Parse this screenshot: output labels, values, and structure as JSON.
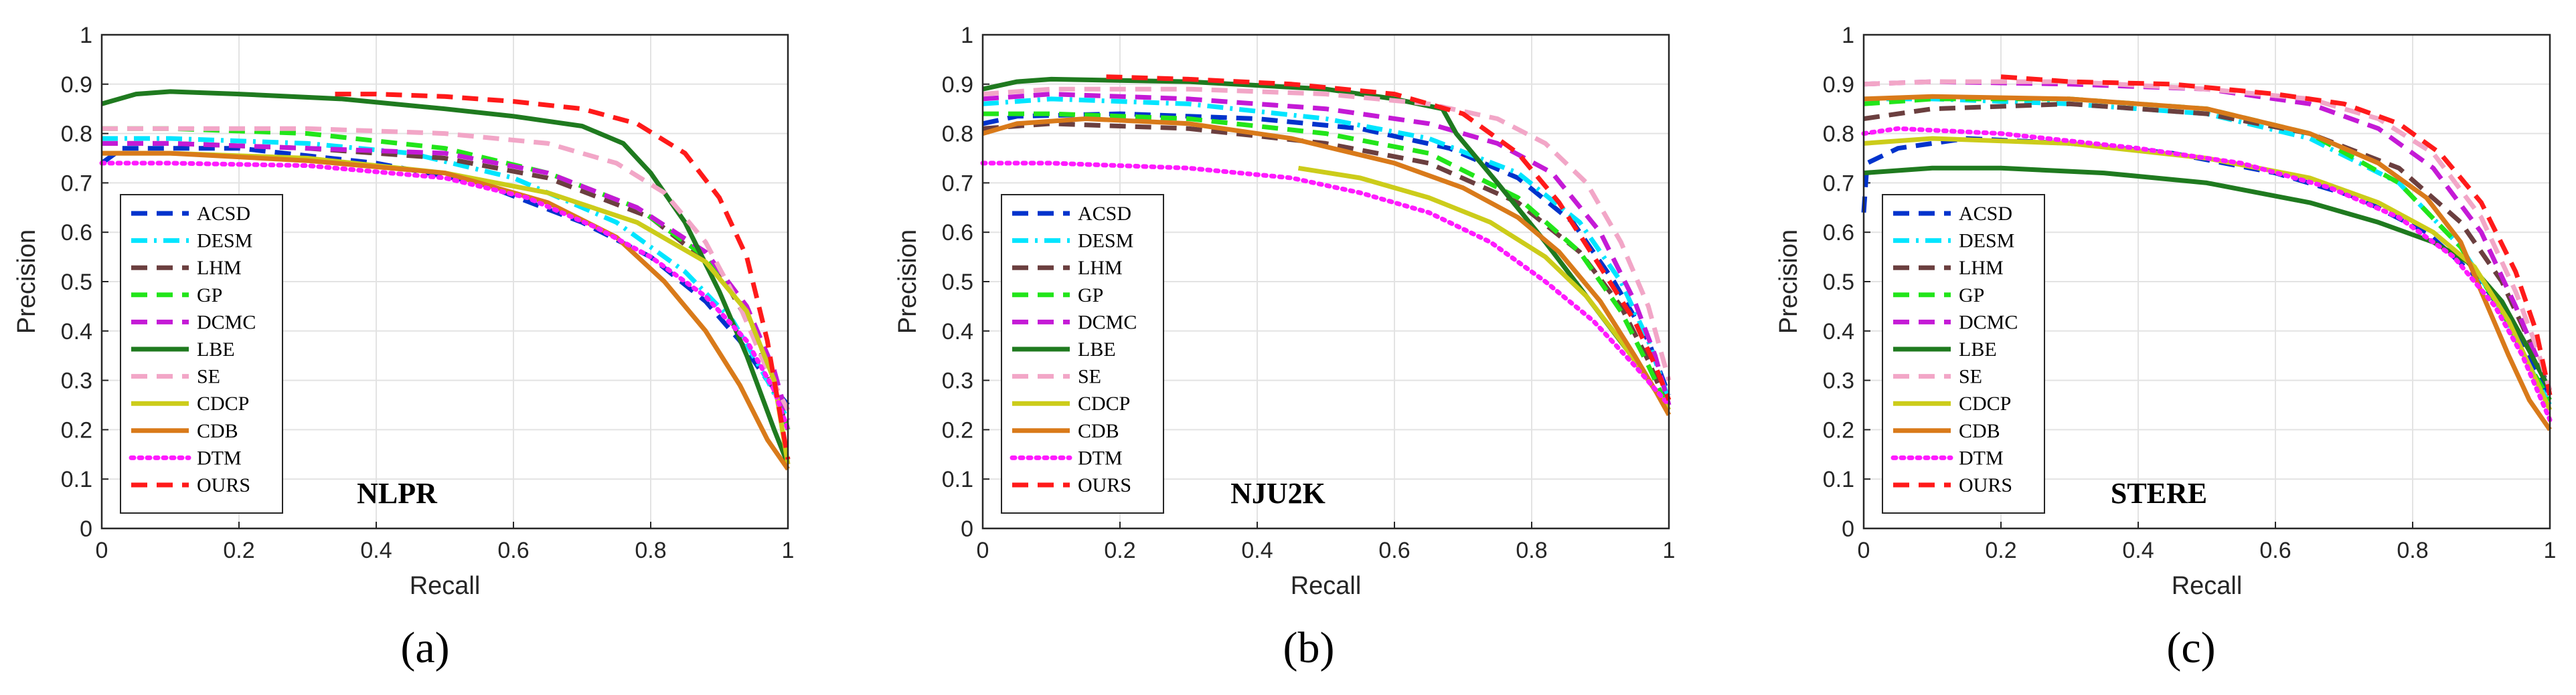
{
  "series_styles": [
    {
      "name": "ACSD",
      "color": "#0033cc",
      "style": "dash"
    },
    {
      "name": "DESM",
      "color": "#00e5ff",
      "style": "dashdot"
    },
    {
      "name": "LHM",
      "color": "#6b3f3f",
      "style": "dash"
    },
    {
      "name": "GP",
      "color": "#22e51a",
      "style": "dash"
    },
    {
      "name": "DCMC",
      "color": "#c41ad6",
      "style": "dash"
    },
    {
      "name": "LBE",
      "color": "#1f7a1f",
      "style": "solid"
    },
    {
      "name": "SE",
      "color": "#f2a6c7",
      "style": "dash"
    },
    {
      "name": "CDCP",
      "color": "#cccc1a",
      "style": "solid"
    },
    {
      "name": "CDB",
      "color": "#d97a1a",
      "style": "solid"
    },
    {
      "name": "DTM",
      "color": "#ff1aff",
      "style": "dot"
    },
    {
      "name": "OURS",
      "color": "#ff1a1a",
      "style": "dash"
    }
  ],
  "chart_data": [
    {
      "type": "line",
      "panel_label": "(a)",
      "dataset_label": "NLPR",
      "xlabel": "Recall",
      "ylabel": "Precision",
      "xlim": [
        0,
        1
      ],
      "ylim": [
        0,
        1
      ],
      "xticks": [
        "0",
        "0.2",
        "0.4",
        "0.6",
        "0.8",
        "1"
      ],
      "yticks": [
        "0",
        "0.1",
        "0.2",
        "0.3",
        "0.4",
        "0.5",
        "0.6",
        "0.7",
        "0.8",
        "0.9",
        "1"
      ],
      "grid": true,
      "legend_position": "bottom-left",
      "series": [
        {
          "name": "ACSD",
          "x": [
            0,
            0.03,
            0.2,
            0.4,
            0.55,
            0.7,
            0.8,
            0.88,
            0.93,
            0.97,
            1.0
          ],
          "y": [
            0.74,
            0.77,
            0.77,
            0.74,
            0.7,
            0.62,
            0.55,
            0.46,
            0.38,
            0.3,
            0.25
          ]
        },
        {
          "name": "DESM",
          "x": [
            0,
            0.1,
            0.3,
            0.45,
            0.6,
            0.75,
            0.85,
            0.92,
            0.97,
            1.0
          ],
          "y": [
            0.79,
            0.79,
            0.78,
            0.76,
            0.71,
            0.62,
            0.52,
            0.42,
            0.3,
            0.22
          ]
        },
        {
          "name": "LHM",
          "x": [
            0,
            0.1,
            0.3,
            0.5,
            0.65,
            0.8,
            0.9,
            0.95,
            1.0
          ],
          "y": [
            0.78,
            0.78,
            0.77,
            0.75,
            0.71,
            0.63,
            0.52,
            0.4,
            0.2
          ]
        },
        {
          "name": "GP",
          "x": [
            0,
            0.1,
            0.3,
            0.5,
            0.65,
            0.78,
            0.88,
            0.94,
            0.98,
            1.0
          ],
          "y": [
            0.81,
            0.81,
            0.8,
            0.77,
            0.72,
            0.65,
            0.55,
            0.44,
            0.3,
            0.2
          ]
        },
        {
          "name": "DCMC",
          "x": [
            0,
            0.1,
            0.3,
            0.5,
            0.65,
            0.78,
            0.88,
            0.94,
            0.98,
            1.0
          ],
          "y": [
            0.78,
            0.78,
            0.77,
            0.76,
            0.72,
            0.65,
            0.56,
            0.45,
            0.32,
            0.22
          ]
        },
        {
          "name": "LBE",
          "x": [
            0,
            0.05,
            0.1,
            0.2,
            0.35,
            0.5,
            0.6,
            0.7,
            0.76,
            0.8,
            0.85,
            0.9,
            0.94,
            0.98,
            1.0
          ],
          "y": [
            0.86,
            0.88,
            0.885,
            0.88,
            0.87,
            0.85,
            0.835,
            0.815,
            0.78,
            0.72,
            0.62,
            0.48,
            0.35,
            0.2,
            0.13
          ]
        },
        {
          "name": "SE",
          "x": [
            0,
            0.1,
            0.3,
            0.5,
            0.65,
            0.75,
            0.82,
            0.88,
            0.93,
            0.97,
            1.0
          ],
          "y": [
            0.81,
            0.81,
            0.81,
            0.8,
            0.78,
            0.74,
            0.68,
            0.58,
            0.45,
            0.32,
            0.24
          ]
        },
        {
          "name": "CDCP",
          "x": [
            0,
            0.1,
            0.3,
            0.5,
            0.65,
            0.78,
            0.88,
            0.94,
            0.98,
            1.0
          ],
          "y": [
            0.76,
            0.76,
            0.75,
            0.72,
            0.68,
            0.62,
            0.54,
            0.44,
            0.3,
            0.13
          ]
        },
        {
          "name": "CDB",
          "x": [
            0,
            0.1,
            0.3,
            0.5,
            0.65,
            0.75,
            0.82,
            0.88,
            0.93,
            0.97,
            1.0
          ],
          "y": [
            0.76,
            0.76,
            0.745,
            0.72,
            0.66,
            0.59,
            0.5,
            0.4,
            0.29,
            0.18,
            0.12
          ]
        },
        {
          "name": "DTM",
          "x": [
            0,
            0.1,
            0.3,
            0.5,
            0.62,
            0.72,
            0.8,
            0.88,
            0.94,
            0.98,
            1.0
          ],
          "y": [
            0.74,
            0.74,
            0.735,
            0.71,
            0.67,
            0.61,
            0.55,
            0.47,
            0.38,
            0.28,
            0.2
          ]
        },
        {
          "name": "OURS",
          "x": [
            0.34,
            0.4,
            0.5,
            0.6,
            0.7,
            0.78,
            0.85,
            0.9,
            0.94,
            0.97,
            1.0
          ],
          "y": [
            0.88,
            0.88,
            0.875,
            0.865,
            0.85,
            0.82,
            0.76,
            0.67,
            0.55,
            0.38,
            0.14
          ]
        }
      ]
    },
    {
      "type": "line",
      "panel_label": "(b)",
      "dataset_label": "NJU2K",
      "xlabel": "Recall",
      "ylabel": "Precision",
      "xlim": [
        0,
        1
      ],
      "ylim": [
        0,
        1
      ],
      "xticks": [
        "0",
        "0.2",
        "0.4",
        "0.6",
        "0.8",
        "1"
      ],
      "yticks": [
        "0",
        "0.1",
        "0.2",
        "0.3",
        "0.4",
        "0.5",
        "0.6",
        "0.7",
        "0.8",
        "0.9",
        "1"
      ],
      "grid": true,
      "legend_position": "bottom-left",
      "series": [
        {
          "name": "ACSD",
          "x": [
            0,
            0.05,
            0.2,
            0.4,
            0.55,
            0.68,
            0.78,
            0.86,
            0.92,
            0.97,
            1.0
          ],
          "y": [
            0.82,
            0.835,
            0.84,
            0.83,
            0.81,
            0.77,
            0.71,
            0.62,
            0.5,
            0.38,
            0.27
          ]
        },
        {
          "name": "DESM",
          "x": [
            0,
            0.1,
            0.3,
            0.5,
            0.65,
            0.78,
            0.87,
            0.93,
            0.97,
            1.0
          ],
          "y": [
            0.86,
            0.87,
            0.86,
            0.83,
            0.79,
            0.72,
            0.62,
            0.5,
            0.38,
            0.26
          ]
        },
        {
          "name": "LHM",
          "x": [
            0,
            0.1,
            0.3,
            0.5,
            0.65,
            0.78,
            0.87,
            0.93,
            0.97,
            1.0
          ],
          "y": [
            0.81,
            0.82,
            0.81,
            0.78,
            0.74,
            0.66,
            0.56,
            0.45,
            0.34,
            0.24
          ]
        },
        {
          "name": "GP",
          "x": [
            0,
            0.1,
            0.3,
            0.5,
            0.65,
            0.78,
            0.87,
            0.93,
            0.97,
            1.0
          ],
          "y": [
            0.84,
            0.84,
            0.83,
            0.8,
            0.76,
            0.67,
            0.56,
            0.44,
            0.33,
            0.24
          ]
        },
        {
          "name": "DCMC",
          "x": [
            0,
            0.1,
            0.3,
            0.5,
            0.65,
            0.75,
            0.83,
            0.9,
            0.95,
            0.98,
            1.0
          ],
          "y": [
            0.87,
            0.88,
            0.87,
            0.85,
            0.82,
            0.78,
            0.72,
            0.6,
            0.46,
            0.35,
            0.25
          ]
        },
        {
          "name": "LBE",
          "x": [
            0,
            0.05,
            0.1,
            0.3,
            0.5,
            0.6,
            0.67,
            0.69,
            0.75,
            0.82,
            0.88,
            0.94,
            0.98,
            1.0
          ],
          "y": [
            0.89,
            0.905,
            0.91,
            0.905,
            0.89,
            0.87,
            0.85,
            0.8,
            0.7,
            0.58,
            0.47,
            0.36,
            0.28,
            0.24
          ]
        },
        {
          "name": "SE",
          "x": [
            0,
            0.1,
            0.3,
            0.5,
            0.65,
            0.75,
            0.82,
            0.88,
            0.93,
            0.97,
            1.0
          ],
          "y": [
            0.88,
            0.89,
            0.89,
            0.88,
            0.86,
            0.83,
            0.78,
            0.7,
            0.58,
            0.45,
            0.3
          ]
        },
        {
          "name": "CDCP",
          "x": [
            0.46,
            0.55,
            0.65,
            0.74,
            0.82,
            0.88,
            0.93,
            0.97,
            1.0
          ],
          "y": [
            0.73,
            0.71,
            0.67,
            0.62,
            0.55,
            0.47,
            0.38,
            0.3,
            0.24
          ]
        },
        {
          "name": "CDB",
          "x": [
            0,
            0.05,
            0.15,
            0.3,
            0.45,
            0.6,
            0.7,
            0.78,
            0.84,
            0.9,
            0.95,
            0.98,
            1.0
          ],
          "y": [
            0.8,
            0.82,
            0.83,
            0.82,
            0.79,
            0.74,
            0.69,
            0.63,
            0.56,
            0.46,
            0.35,
            0.28,
            0.23
          ]
        },
        {
          "name": "DTM",
          "x": [
            0,
            0.1,
            0.3,
            0.45,
            0.55,
            0.65,
            0.74,
            0.82,
            0.89,
            0.95,
            1.0
          ],
          "y": [
            0.74,
            0.74,
            0.73,
            0.71,
            0.68,
            0.64,
            0.58,
            0.5,
            0.42,
            0.33,
            0.25
          ]
        },
        {
          "name": "OURS",
          "x": [
            0.18,
            0.3,
            0.45,
            0.6,
            0.7,
            0.78,
            0.84,
            0.9,
            0.95,
            0.98,
            1.0
          ],
          "y": [
            0.915,
            0.91,
            0.9,
            0.88,
            0.84,
            0.76,
            0.66,
            0.53,
            0.42,
            0.33,
            0.26
          ]
        }
      ]
    },
    {
      "type": "line",
      "panel_label": "(c)",
      "dataset_label": "STERE",
      "xlabel": "Recall",
      "ylabel": "Precision",
      "xlim": [
        0,
        1
      ],
      "ylim": [
        0,
        1
      ],
      "xticks": [
        "0",
        "0.2",
        "0.4",
        "0.6",
        "0.8",
        "1"
      ],
      "yticks": [
        "0",
        "0.1",
        "0.2",
        "0.3",
        "0.4",
        "0.5",
        "0.6",
        "0.7",
        "0.8",
        "0.9",
        "1"
      ],
      "grid": true,
      "legend_position": "bottom-left",
      "series": [
        {
          "name": "ACSD",
          "x": [
            0,
            0.005,
            0.05,
            0.15,
            0.3,
            0.45,
            0.6,
            0.72,
            0.82,
            0.9,
            0.95,
            0.98,
            1.0
          ],
          "y": [
            0.64,
            0.74,
            0.77,
            0.79,
            0.78,
            0.76,
            0.72,
            0.67,
            0.6,
            0.5,
            0.4,
            0.32,
            0.26
          ]
        },
        {
          "name": "DESM",
          "x": [
            0,
            0.1,
            0.3,
            0.5,
            0.65,
            0.78,
            0.87,
            0.93,
            0.97,
            1.0
          ],
          "y": [
            0.87,
            0.87,
            0.86,
            0.84,
            0.79,
            0.7,
            0.57,
            0.44,
            0.33,
            0.25
          ]
        },
        {
          "name": "LHM",
          "x": [
            0,
            0.1,
            0.3,
            0.5,
            0.65,
            0.78,
            0.87,
            0.93,
            0.97,
            1.0
          ],
          "y": [
            0.83,
            0.85,
            0.86,
            0.84,
            0.8,
            0.73,
            0.62,
            0.5,
            0.38,
            0.28
          ]
        },
        {
          "name": "GP",
          "x": [
            0,
            0.1,
            0.3,
            0.5,
            0.65,
            0.78,
            0.87,
            0.93,
            0.97,
            1.0
          ],
          "y": [
            0.86,
            0.87,
            0.87,
            0.85,
            0.8,
            0.7,
            0.57,
            0.44,
            0.33,
            0.26
          ]
        },
        {
          "name": "DCMC",
          "x": [
            0,
            0.1,
            0.3,
            0.5,
            0.65,
            0.75,
            0.83,
            0.9,
            0.95,
            0.98,
            1.0
          ],
          "y": [
            0.9,
            0.905,
            0.9,
            0.89,
            0.86,
            0.81,
            0.73,
            0.6,
            0.45,
            0.35,
            0.27
          ]
        },
        {
          "name": "LBE",
          "x": [
            0,
            0.1,
            0.2,
            0.35,
            0.5,
            0.65,
            0.75,
            0.83,
            0.88,
            0.93,
            0.97,
            1.0
          ],
          "y": [
            0.72,
            0.73,
            0.73,
            0.72,
            0.7,
            0.66,
            0.62,
            0.58,
            0.54,
            0.46,
            0.36,
            0.28
          ]
        },
        {
          "name": "SE",
          "x": [
            0,
            0.1,
            0.3,
            0.5,
            0.65,
            0.75,
            0.83,
            0.9,
            0.95,
            0.98,
            1.0
          ],
          "y": [
            0.9,
            0.905,
            0.905,
            0.89,
            0.87,
            0.83,
            0.76,
            0.63,
            0.48,
            0.37,
            0.28
          ]
        },
        {
          "name": "CDCP",
          "x": [
            0,
            0.1,
            0.3,
            0.5,
            0.65,
            0.75,
            0.83,
            0.89,
            0.94,
            0.98,
            1.0
          ],
          "y": [
            0.78,
            0.79,
            0.78,
            0.75,
            0.71,
            0.66,
            0.6,
            0.53,
            0.42,
            0.3,
            0.24
          ]
        },
        {
          "name": "CDB",
          "x": [
            0,
            0.1,
            0.3,
            0.5,
            0.65,
            0.75,
            0.82,
            0.87,
            0.9,
            0.94,
            0.97,
            1.0
          ],
          "y": [
            0.87,
            0.875,
            0.87,
            0.85,
            0.8,
            0.74,
            0.67,
            0.58,
            0.48,
            0.35,
            0.26,
            0.2
          ]
        },
        {
          "name": "DTM",
          "x": [
            0,
            0.05,
            0.2,
            0.4,
            0.55,
            0.68,
            0.78,
            0.86,
            0.92,
            0.96,
            1.0
          ],
          "y": [
            0.8,
            0.81,
            0.8,
            0.77,
            0.74,
            0.69,
            0.63,
            0.55,
            0.45,
            0.35,
            0.22
          ]
        },
        {
          "name": "OURS",
          "x": [
            0.2,
            0.3,
            0.45,
            0.6,
            0.7,
            0.78,
            0.84,
            0.9,
            0.95,
            0.98,
            1.0
          ],
          "y": [
            0.915,
            0.905,
            0.9,
            0.88,
            0.86,
            0.82,
            0.76,
            0.66,
            0.52,
            0.4,
            0.27
          ]
        }
      ]
    }
  ]
}
